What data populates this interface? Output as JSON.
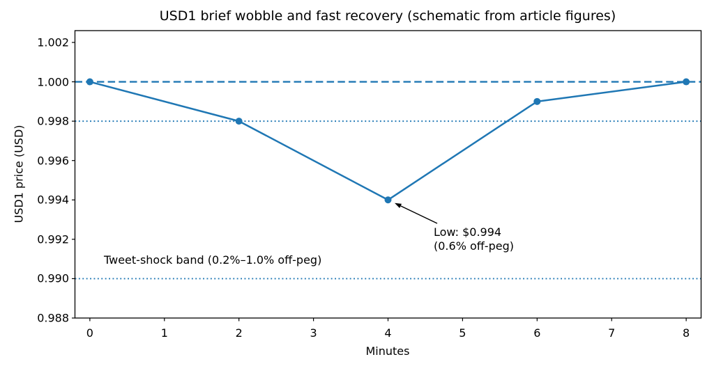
{
  "chart_data": {
    "type": "line",
    "title": "USD1 brief wobble and fast recovery (schematic from article figures)",
    "xlabel": "Minutes",
    "ylabel": "USD1 price (USD)",
    "x": [
      0,
      2,
      4,
      6,
      8
    ],
    "y": [
      1.0,
      0.998,
      0.994,
      0.999,
      1.0
    ],
    "xlim": [
      -0.2,
      8.2
    ],
    "ylim": [
      0.988,
      1.0026
    ],
    "x_ticks": [
      "0",
      "1",
      "2",
      "3",
      "4",
      "5",
      "6",
      "7",
      "8"
    ],
    "y_ticks": [
      "1.002",
      "1.000",
      "0.998",
      "0.996",
      "0.994",
      "0.992",
      "0.990",
      "0.988"
    ],
    "reference_lines": [
      {
        "y": 1.0,
        "style": "dashed"
      },
      {
        "y": 0.998,
        "style": "dotted"
      },
      {
        "y": 0.99,
        "style": "dotted"
      }
    ],
    "annotations": {
      "low": {
        "lines": [
          "Low: $0.994",
          "(0.6% off-peg)"
        ],
        "arrow_to": {
          "x": 4,
          "y": 0.994
        }
      },
      "band_label": "Tweet-shock band (0.2%–1.0% off-peg)"
    },
    "colors": {
      "line": "#1f77b4",
      "reference": "#1f77b4",
      "axis": "#000000",
      "annotation": "#000000"
    },
    "grid": false,
    "legend": "none",
    "marker": "circle"
  }
}
